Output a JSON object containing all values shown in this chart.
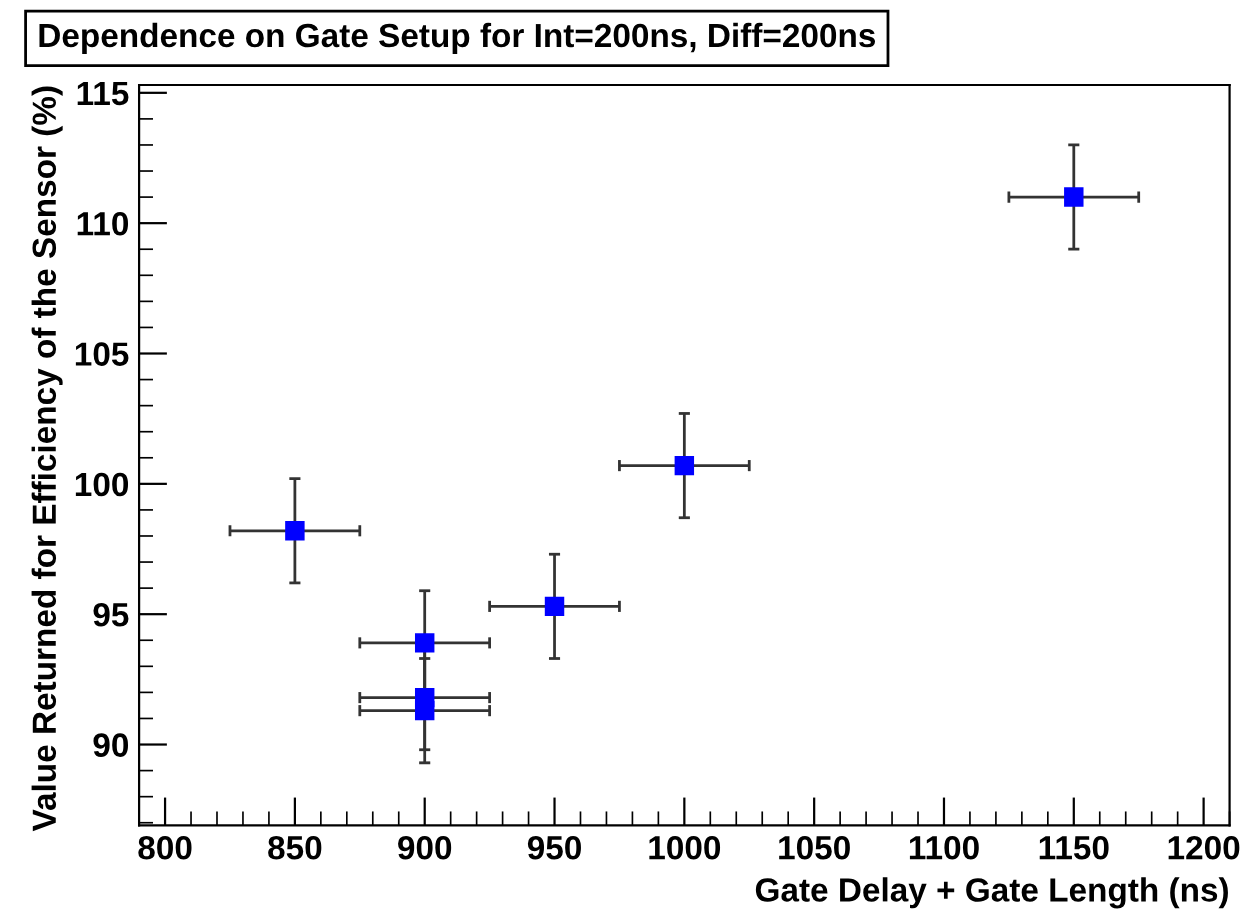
{
  "chart_data": {
    "type": "scatter",
    "title": "Dependence on Gate Setup for Int=200ns, Diff=200ns",
    "xlabel": "Gate Delay + Gate Length (ns)",
    "ylabel": "Value Returned for Efficiency of the Sensor (%)",
    "x": [
      850,
      900,
      900,
      900,
      950,
      1000,
      1150
    ],
    "series": [
      {
        "color": "#0000ff",
        "values": [
          98.2,
          93.9,
          91.8,
          91.3,
          95.3,
          100.7,
          111.0
        ],
        "errors": [
          2,
          2,
          2,
          2,
          2,
          2,
          2
        ],
        "xerrors": [
          25,
          25,
          25,
          25,
          25,
          25,
          25
        ]
      }
    ],
    "marker": "square",
    "grid": false,
    "legend": false,
    "xlim": [
      790,
      1210
    ],
    "xticks": [
      800,
      850,
      900,
      950,
      1000,
      1050,
      1100,
      1150,
      1200
    ],
    "ylim": [
      86.9,
      115.3
    ],
    "yticks": [
      90,
      95,
      100,
      105,
      110,
      115
    ]
  }
}
